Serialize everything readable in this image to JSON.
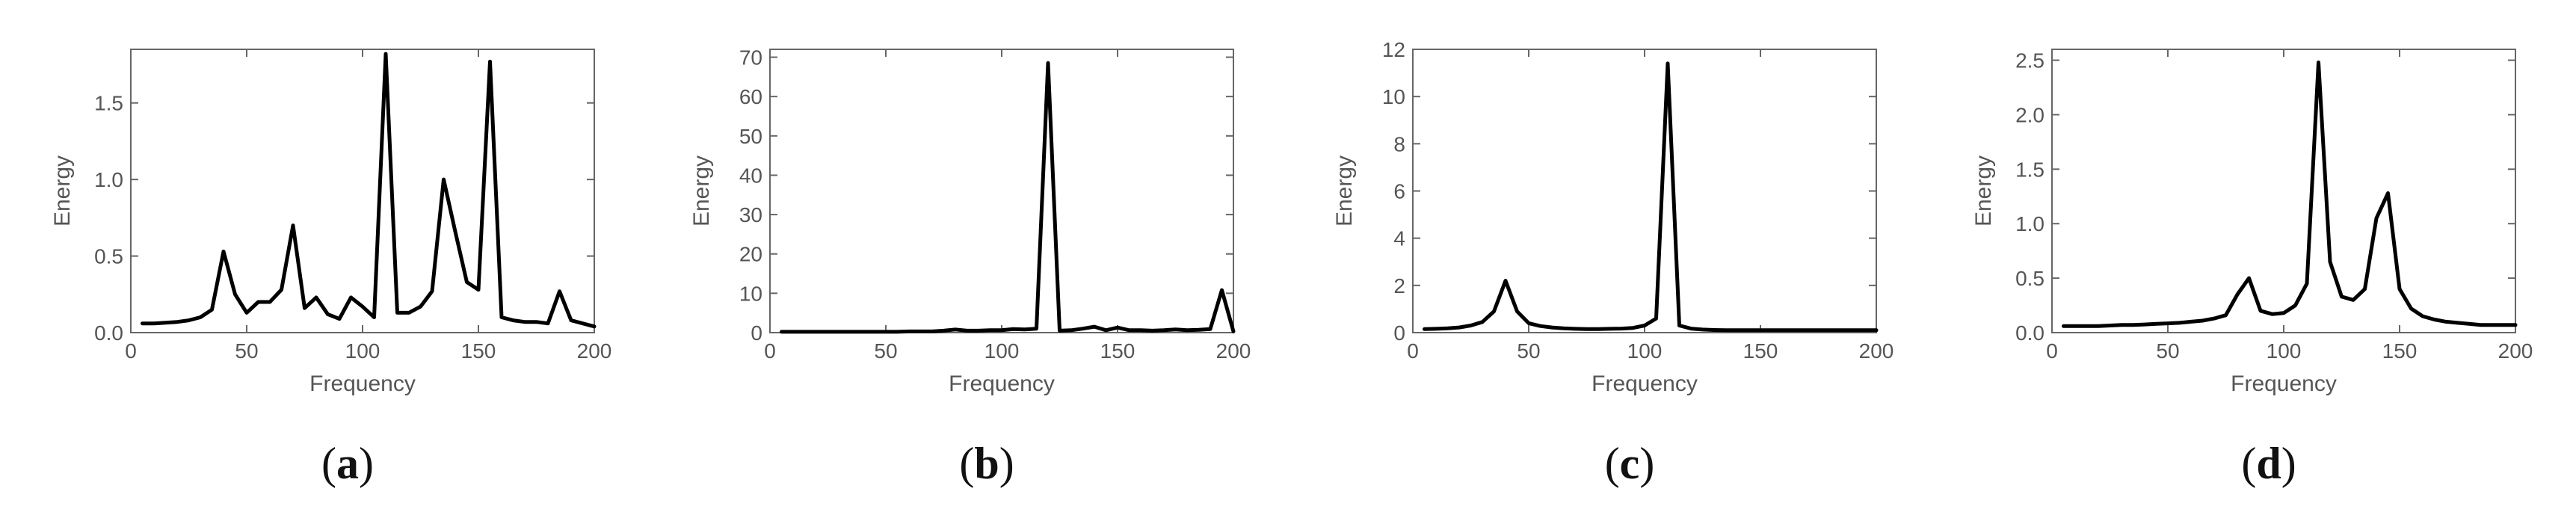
{
  "figure": {
    "panels": [
      "(a)",
      "(b)",
      "(c)",
      "(d)"
    ]
  },
  "chart_data": [
    {
      "type": "line",
      "panel": "(a)",
      "title": "",
      "xlabel": "Frequency",
      "ylabel": "Energy",
      "xlim": [
        0,
        200
      ],
      "ylim": [
        0,
        1.85
      ],
      "xticks": [
        0,
        50,
        100,
        150,
        200
      ],
      "yticks": [
        0.0,
        0.5,
        1.0,
        1.5
      ],
      "ytick_labels": [
        "0.0",
        "0.5",
        "1.0",
        "1.5"
      ],
      "grid": false,
      "series": [
        {
          "x": [
            5,
            10,
            15,
            20,
            25,
            30,
            35,
            40,
            45,
            50,
            55,
            60,
            65,
            70,
            75,
            80,
            85,
            90,
            95,
            100,
            105,
            110,
            115,
            120,
            125,
            130,
            135,
            140,
            145,
            150,
            155,
            160,
            165,
            170,
            175,
            180,
            185,
            190,
            195,
            200
          ],
          "y": [
            0.06,
            0.06,
            0.065,
            0.07,
            0.08,
            0.1,
            0.15,
            0.53,
            0.25,
            0.13,
            0.2,
            0.2,
            0.28,
            0.7,
            0.16,
            0.23,
            0.12,
            0.09,
            0.23,
            0.17,
            0.1,
            1.82,
            0.13,
            0.13,
            0.17,
            0.27,
            1.0,
            0.66,
            0.33,
            0.28,
            1.77,
            0.1,
            0.08,
            0.07,
            0.07,
            0.06,
            0.27,
            0.08,
            0.06,
            0.04
          ]
        }
      ]
    },
    {
      "type": "line",
      "panel": "(b)",
      "title": "",
      "xlabel": "Frequency",
      "ylabel": "Energy",
      "xlim": [
        0,
        200
      ],
      "ylim": [
        0,
        72
      ],
      "xticks": [
        0,
        50,
        100,
        150,
        200
      ],
      "yticks": [
        0,
        10,
        20,
        30,
        40,
        50,
        60,
        70
      ],
      "ytick_labels": [
        "0",
        "10",
        "20",
        "30",
        "40",
        "50",
        "60",
        "70"
      ],
      "grid": false,
      "series": [
        {
          "x": [
            5,
            10,
            15,
            20,
            25,
            30,
            35,
            40,
            45,
            50,
            55,
            60,
            65,
            70,
            75,
            80,
            85,
            90,
            95,
            100,
            105,
            110,
            115,
            120,
            125,
            130,
            135,
            140,
            145,
            150,
            155,
            160,
            165,
            170,
            175,
            180,
            185,
            190,
            195,
            200
          ],
          "y": [
            0.2,
            0.2,
            0.2,
            0.2,
            0.2,
            0.2,
            0.2,
            0.2,
            0.2,
            0.2,
            0.2,
            0.3,
            0.3,
            0.3,
            0.5,
            0.8,
            0.5,
            0.5,
            0.6,
            0.6,
            0.9,
            0.8,
            1.0,
            68.5,
            0.5,
            0.6,
            1.0,
            1.5,
            0.6,
            1.3,
            0.6,
            0.6,
            0.5,
            0.6,
            0.8,
            0.6,
            0.7,
            0.9,
            10.8,
            0.3
          ]
        }
      ]
    },
    {
      "type": "line",
      "panel": "(c)",
      "title": "",
      "xlabel": "Frequency",
      "ylabel": "Energy",
      "xlim": [
        0,
        200
      ],
      "ylim": [
        0,
        12
      ],
      "xticks": [
        0,
        50,
        100,
        150,
        200
      ],
      "yticks": [
        0,
        2,
        4,
        6,
        8,
        10,
        12
      ],
      "ytick_labels": [
        "0",
        "2",
        "4",
        "6",
        "8",
        "10",
        "12"
      ],
      "grid": false,
      "series": [
        {
          "x": [
            5,
            10,
            15,
            20,
            25,
            30,
            35,
            40,
            45,
            50,
            55,
            60,
            65,
            70,
            75,
            80,
            85,
            90,
            95,
            100,
            105,
            110,
            115,
            120,
            125,
            130,
            135,
            140,
            145,
            150,
            155,
            160,
            165,
            170,
            175,
            180,
            185,
            190,
            195,
            200
          ],
          "y": [
            0.15,
            0.16,
            0.18,
            0.22,
            0.3,
            0.45,
            0.9,
            2.2,
            0.9,
            0.4,
            0.28,
            0.22,
            0.18,
            0.16,
            0.15,
            0.15,
            0.16,
            0.17,
            0.2,
            0.3,
            0.6,
            11.4,
            0.3,
            0.17,
            0.13,
            0.11,
            0.1,
            0.1,
            0.1,
            0.1,
            0.1,
            0.1,
            0.1,
            0.1,
            0.1,
            0.1,
            0.1,
            0.1,
            0.1,
            0.1
          ]
        }
      ]
    },
    {
      "type": "line",
      "panel": "(d)",
      "title": "",
      "xlabel": "Frequency",
      "ylabel": "Energy",
      "xlim": [
        0,
        200
      ],
      "ylim": [
        0,
        2.6
      ],
      "xticks": [
        0,
        50,
        100,
        150,
        200
      ],
      "yticks": [
        0.0,
        0.5,
        1.0,
        1.5,
        2.0,
        2.5
      ],
      "ytick_labels": [
        "0.0",
        "0.5",
        "1.0",
        "1.5",
        "2.0",
        "2.5"
      ],
      "grid": false,
      "series": [
        {
          "x": [
            5,
            10,
            15,
            20,
            25,
            30,
            35,
            40,
            45,
            50,
            55,
            60,
            65,
            70,
            75,
            80,
            85,
            90,
            95,
            100,
            105,
            110,
            115,
            120,
            125,
            130,
            135,
            140,
            145,
            150,
            155,
            160,
            165,
            170,
            175,
            180,
            185,
            190,
            195,
            200
          ],
          "y": [
            0.06,
            0.06,
            0.06,
            0.06,
            0.065,
            0.07,
            0.07,
            0.075,
            0.08,
            0.085,
            0.09,
            0.1,
            0.11,
            0.13,
            0.16,
            0.35,
            0.5,
            0.2,
            0.17,
            0.18,
            0.25,
            0.45,
            2.48,
            0.65,
            0.33,
            0.3,
            0.4,
            1.05,
            1.28,
            0.4,
            0.22,
            0.15,
            0.12,
            0.1,
            0.09,
            0.08,
            0.07,
            0.07,
            0.07,
            0.07
          ]
        }
      ]
    }
  ]
}
